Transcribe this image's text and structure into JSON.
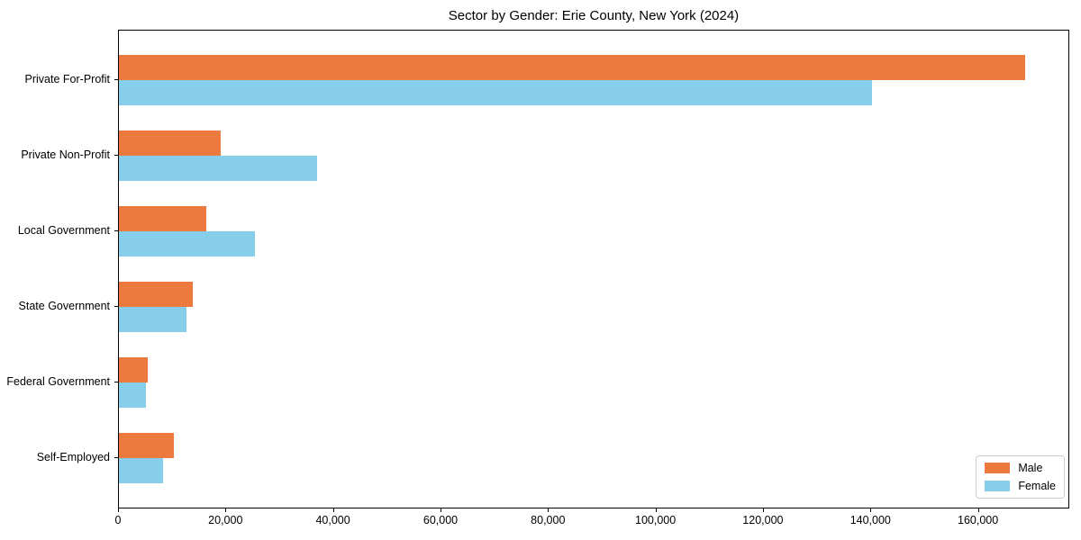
{
  "chart_data": {
    "type": "bar",
    "orientation": "horizontal",
    "title": "Sector by Gender: Erie County, New York (2024)",
    "categories": [
      "Private For-Profit",
      "Private Non-Profit",
      "Local Government",
      "State Government",
      "Federal Government",
      "Self-Employed"
    ],
    "series": [
      {
        "name": "Male",
        "color": "#EC7A3E",
        "values": [
          168600,
          19000,
          16300,
          13700,
          5400,
          10200
        ]
      },
      {
        "name": "Female",
        "color": "#87CEEB",
        "values": [
          140200,
          36900,
          25300,
          12600,
          5000,
          8200
        ]
      }
    ],
    "xlim": [
      0,
      177000
    ],
    "x_ticks": [
      0,
      20000,
      40000,
      60000,
      80000,
      100000,
      120000,
      140000,
      160000
    ],
    "x_tick_labels": [
      "0",
      "20,000",
      "40,000",
      "60,000",
      "80,000",
      "100,000",
      "120,000",
      "140,000",
      "160,000"
    ],
    "xlabel": "",
    "ylabel": "",
    "grid": false,
    "legend": {
      "position": "lower right",
      "entries": [
        "Male",
        "Female"
      ]
    }
  }
}
